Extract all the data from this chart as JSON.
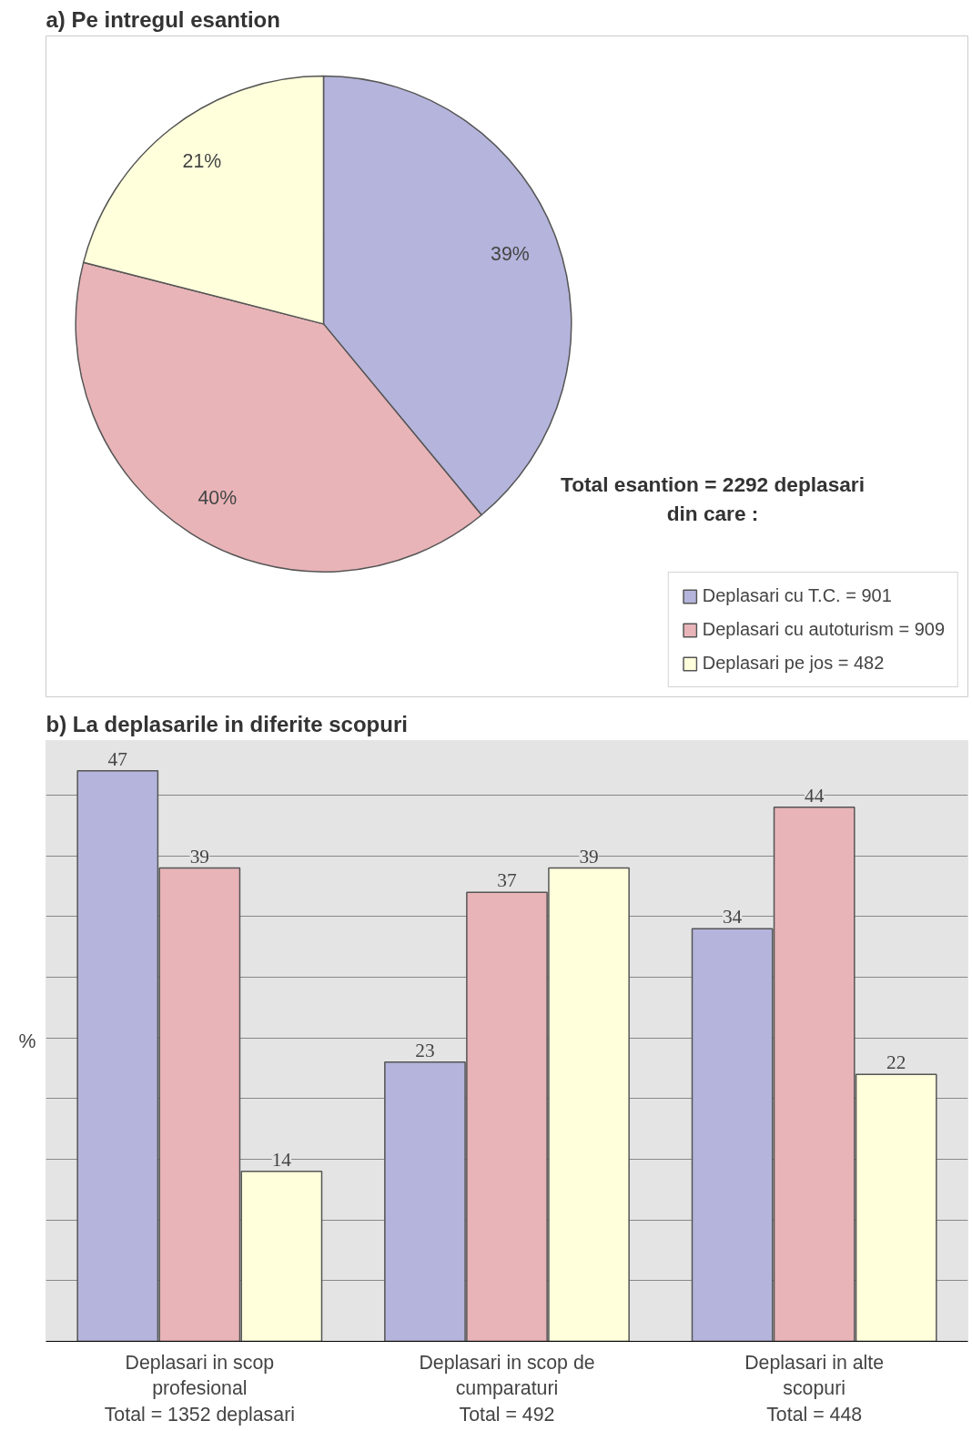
{
  "chart_data": [
    {
      "type": "pie",
      "title": "a) Pe intregul esantion",
      "categories": [
        "Deplasari cu T.C. = 901",
        "Deplasari cu autoturism = 909",
        "Deplasari pe jos = 482"
      ],
      "values": [
        39,
        40,
        21
      ],
      "colors": [
        "#b4b4dc",
        "#e8b4b8",
        "#ffffdc"
      ],
      "value_labels": [
        "39%",
        "40%",
        "21%"
      ],
      "legend": "bottom right",
      "annotations": [
        "Total esantion = 2292 deplasari\ndin care :"
      ]
    },
    {
      "type": "bar",
      "title": "b) La deplasarile in diferite scopuri",
      "ylabel": "%",
      "categories": [
        "Deplasari in scop\nprofesional\nTotal = 1352 deplasari",
        "Deplasari in scop de\ncumparaturi\nTotal = 492",
        "Deplasari in alte\nscopuri\nTotal = 448"
      ],
      "series": [
        {
          "color": "#b4b4dc",
          "values": [
            47,
            23,
            34
          ]
        },
        {
          "color": "#e8b4b8",
          "values": [
            39,
            37,
            44
          ]
        },
        {
          "color": "#ffffdc",
          "values": [
            14,
            39,
            22
          ]
        }
      ],
      "ylim": [
        0,
        49.5
      ],
      "yticks": [
        {
          "value": 0,
          "label": null
        },
        {
          "value": 5,
          "label": null
        },
        {
          "value": 10,
          "label": null
        },
        {
          "value": 15,
          "label": null
        },
        {
          "value": 20,
          "label": null
        },
        {
          "value": 25,
          "label": null
        },
        {
          "value": 30,
          "label": null
        },
        {
          "value": 35,
          "label": null
        },
        {
          "value": 40,
          "label": null
        },
        {
          "value": 45,
          "label": null
        }
      ],
      "tick_labels": "x",
      "grid": "y",
      "data_labels": true
    }
  ]
}
